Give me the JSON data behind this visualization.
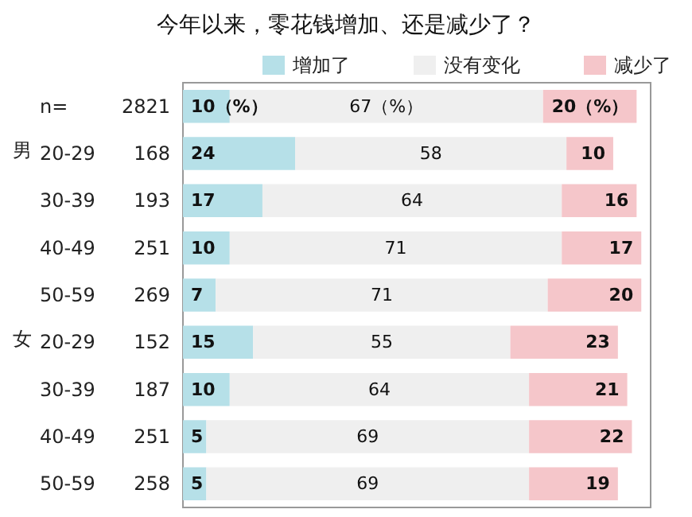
{
  "chart_data": {
    "type": "bar",
    "orientation": "horizontal",
    "stacked": true,
    "title": "今年以来，零花钱增加、还是减少了？",
    "categories": [
      "n= 2821",
      "20-29 168",
      "30-39 193",
      "40-49 251",
      "50-59 269",
      "20-29 152",
      "30-39 187",
      "40-49 251",
      "50-59 258"
    ],
    "series": [
      {
        "name": "增加了",
        "color": "#b6e0e8",
        "values": [
          10,
          24,
          17,
          10,
          7,
          15,
          10,
          5,
          5
        ],
        "value_labels": [
          "10（%）",
          "24",
          "17",
          "10",
          "7",
          "15",
          "10",
          "5",
          "5"
        ]
      },
      {
        "name": "没有变化",
        "color": "#efefef",
        "values": [
          67,
          58,
          64,
          71,
          71,
          55,
          64,
          69,
          69
        ],
        "value_labels": [
          "67（%）",
          "58",
          "64",
          "71",
          "71",
          "55",
          "64",
          "69",
          "69"
        ]
      },
      {
        "name": "减少了",
        "color": "#f5c6ca",
        "values": [
          20,
          10,
          16,
          17,
          20,
          23,
          21,
          22,
          19
        ],
        "value_labels": [
          "20（%）",
          "10",
          "16",
          "17",
          "20",
          "23",
          "21",
          "22",
          "19"
        ]
      }
    ],
    "annotations": [
      "男",
      "女"
    ],
    "xlim": [
      0,
      100
    ],
    "legend": "top",
    "tick_labels": "y"
  }
}
